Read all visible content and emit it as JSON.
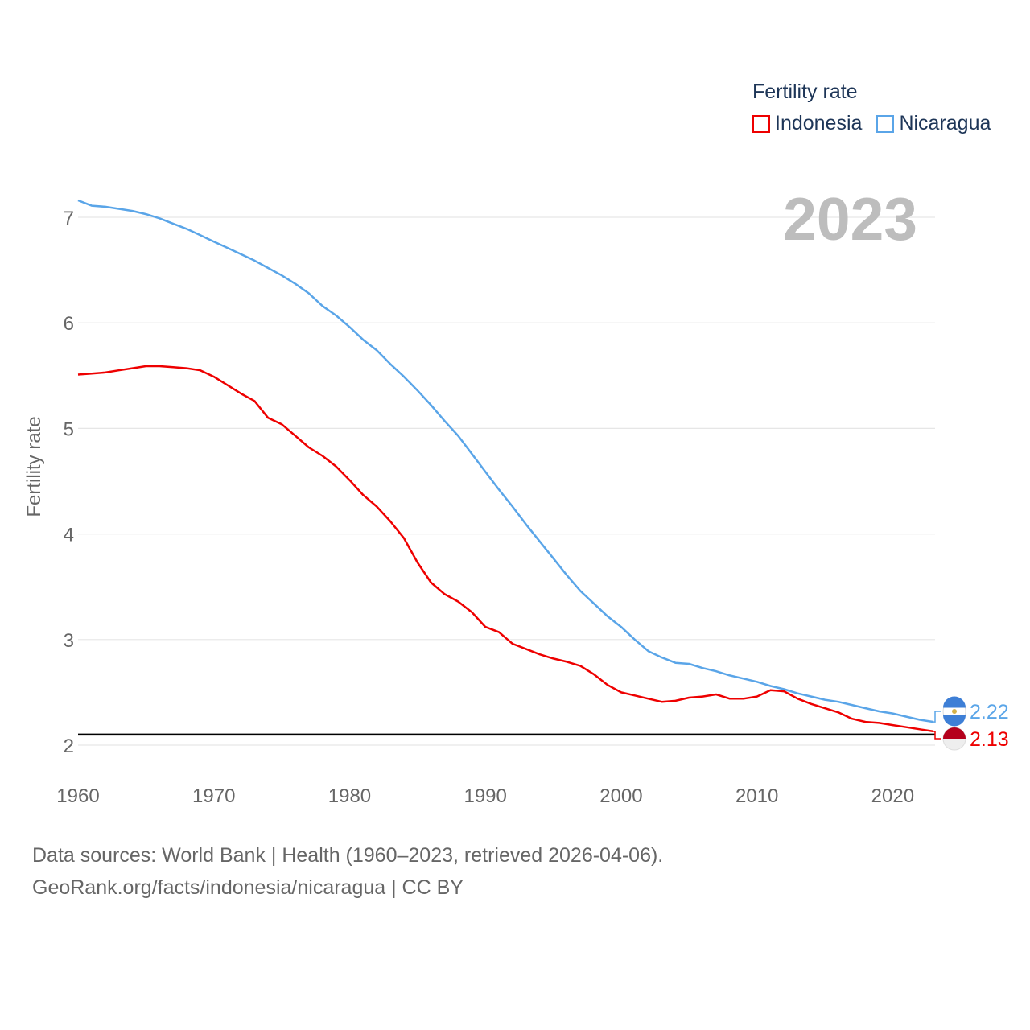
{
  "legend": {
    "title": "Fertility rate",
    "items": [
      {
        "label": "Indonesia",
        "color": "#ee0000"
      },
      {
        "label": "Nicaragua",
        "color": "#5aa5e8"
      }
    ]
  },
  "year_label": "2023",
  "footer": {
    "line1": "Data sources: World Bank | Health (1960–2023, retrieved 2026-04-06).",
    "line2": "GeoRank.org/facts/indonesia/nicaragua | CC BY"
  },
  "chart_data": {
    "type": "line",
    "title": "",
    "xlabel": "",
    "ylabel": "Fertility rate",
    "xlim": [
      1960,
      2023
    ],
    "ylim": [
      2,
      7.2
    ],
    "x_ticks": [
      1960,
      1970,
      1980,
      1990,
      2000,
      2010,
      2020
    ],
    "y_ticks": [
      2,
      3,
      4,
      5,
      6,
      7
    ],
    "reference_line": 2.1,
    "x": [
      1960,
      1961,
      1962,
      1963,
      1964,
      1965,
      1966,
      1967,
      1968,
      1969,
      1970,
      1971,
      1972,
      1973,
      1974,
      1975,
      1976,
      1977,
      1978,
      1979,
      1980,
      1981,
      1982,
      1983,
      1984,
      1985,
      1986,
      1987,
      1988,
      1989,
      1990,
      1991,
      1992,
      1993,
      1994,
      1995,
      1996,
      1997,
      1998,
      1999,
      2000,
      2001,
      2002,
      2003,
      2004,
      2005,
      2006,
      2007,
      2008,
      2009,
      2010,
      2011,
      2012,
      2013,
      2014,
      2015,
      2016,
      2017,
      2018,
      2019,
      2020,
      2021,
      2022,
      2023
    ],
    "series": [
      {
        "name": "Indonesia",
        "color": "#ee0000",
        "end_label": "2.13",
        "values": [
          5.51,
          5.52,
          5.53,
          5.55,
          5.57,
          5.59,
          5.59,
          5.58,
          5.57,
          5.55,
          5.49,
          5.41,
          5.33,
          5.26,
          5.1,
          5.04,
          4.93,
          4.82,
          4.74,
          4.64,
          4.51,
          4.37,
          4.26,
          4.12,
          3.96,
          3.73,
          3.54,
          3.43,
          3.36,
          3.26,
          3.12,
          3.07,
          2.96,
          2.91,
          2.86,
          2.82,
          2.79,
          2.75,
          2.67,
          2.57,
          2.5,
          2.47,
          2.44,
          2.41,
          2.42,
          2.45,
          2.46,
          2.48,
          2.44,
          2.44,
          2.46,
          2.52,
          2.51,
          2.44,
          2.39,
          2.35,
          2.31,
          2.25,
          2.22,
          2.21,
          2.19,
          2.17,
          2.15,
          2.13
        ]
      },
      {
        "name": "Nicaragua",
        "color": "#5aa5e8",
        "end_label": "2.22",
        "values": [
          7.16,
          7.11,
          7.1,
          7.08,
          7.06,
          7.03,
          6.99,
          6.94,
          6.89,
          6.83,
          6.77,
          6.71,
          6.65,
          6.59,
          6.52,
          6.45,
          6.37,
          6.28,
          6.16,
          6.07,
          5.96,
          5.84,
          5.74,
          5.61,
          5.49,
          5.36,
          5.22,
          5.07,
          4.93,
          4.76,
          4.59,
          4.42,
          4.26,
          4.09,
          3.93,
          3.77,
          3.61,
          3.46,
          3.34,
          3.22,
          3.12,
          3.0,
          2.89,
          2.83,
          2.78,
          2.77,
          2.73,
          2.7,
          2.66,
          2.63,
          2.6,
          2.56,
          2.53,
          2.49,
          2.46,
          2.43,
          2.41,
          2.38,
          2.35,
          2.32,
          2.3,
          2.27,
          2.24,
          2.22
        ]
      }
    ]
  }
}
